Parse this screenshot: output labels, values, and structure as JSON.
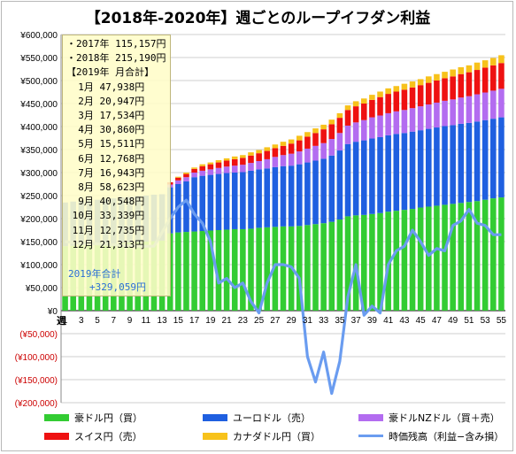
{
  "title": "【2018年-2020年】週ごとのループイフダン利益",
  "info": {
    "lines": [
      "・2017年 115,157円",
      "・2018年 215,190円",
      "【2019年 月合計】",
      "  1月 47,938円",
      "  2月 20,947円",
      "  3月 17,534円",
      "  4月 30,860円",
      "  5月 15,511円",
      "  6月 12,768円",
      "  7月 16,943円",
      "  8月 58,623円",
      "  9月 40,548円",
      " 10月 33,339円",
      " 11月 12,735円",
      " 12月 21,313円"
    ],
    "total_label": "2019年合計",
    "total_value": "+329,059円"
  },
  "legend": {
    "items": [
      {
        "label": "豪ドル円（買）",
        "color": "#33cc33",
        "kind": "bar"
      },
      {
        "label": "ユーロドル（売）",
        "color": "#1f5fe0",
        "kind": "bar"
      },
      {
        "label": "豪ドルNZドル（買＋売）",
        "color": "#b36cf0",
        "kind": "bar"
      },
      {
        "label": "スイス円（売）",
        "color": "#ee1111",
        "kind": "bar"
      },
      {
        "label": "カナダドル円（買）",
        "color": "#f7c21b",
        "kind": "bar"
      },
      {
        "label": "時価残高（利益−含み損）",
        "color": "#6a9cf0",
        "kind": "line"
      }
    ]
  },
  "chart_data": {
    "type": "bar",
    "stacked": true,
    "xlabel": "週",
    "ylim": [
      -200000,
      600000
    ],
    "yticks": [
      {
        "value": 600000,
        "label": "¥600,000"
      },
      {
        "value": 550000,
        "label": "¥550,000"
      },
      {
        "value": 500000,
        "label": "¥500,000"
      },
      {
        "value": 450000,
        "label": "¥450,000"
      },
      {
        "value": 400000,
        "label": "¥400,000"
      },
      {
        "value": 350000,
        "label": "¥350,000"
      },
      {
        "value": 300000,
        "label": "¥300,000"
      },
      {
        "value": 250000,
        "label": "¥250,000"
      },
      {
        "value": 200000,
        "label": "¥200,000"
      },
      {
        "value": 150000,
        "label": "¥150,000"
      },
      {
        "value": 100000,
        "label": "¥100,000"
      },
      {
        "value": 50000,
        "label": "¥50,000"
      },
      {
        "value": 0,
        "label": "¥0"
      },
      {
        "value": -50000,
        "label": "(¥50,000)"
      },
      {
        "value": -100000,
        "label": "(¥100,000)"
      },
      {
        "value": -150000,
        "label": "(¥150,000)"
      },
      {
        "value": -200000,
        "label": "(¥200,000)"
      }
    ],
    "x": [
      1,
      2,
      3,
      4,
      5,
      6,
      7,
      8,
      9,
      10,
      11,
      12,
      13,
      14,
      15,
      16,
      17,
      18,
      19,
      20,
      21,
      22,
      23,
      24,
      25,
      26,
      27,
      28,
      29,
      30,
      31,
      32,
      33,
      34,
      35,
      36,
      37,
      38,
      39,
      40,
      41,
      42,
      43,
      44,
      45,
      46,
      47,
      48,
      49,
      50,
      51,
      52,
      53,
      54,
      55
    ],
    "xtick_labels": [
      "1",
      "3",
      "5",
      "7",
      "9",
      "11",
      "13",
      "15",
      "17",
      "19",
      "21",
      "23",
      "25",
      "27",
      "29",
      "31",
      "33",
      "35",
      "37",
      "39",
      "41",
      "43",
      "45",
      "47",
      "49",
      "51",
      "53",
      "55"
    ],
    "series": [
      {
        "name": "豪ドル円（買）",
        "color": "#33cc33",
        "values": [
          140000,
          141000,
          142000,
          143000,
          144000,
          145000,
          146000,
          147000,
          148000,
          149000,
          150000,
          151000,
          152000,
          168000,
          170000,
          171000,
          172000,
          173000,
          174000,
          175000,
          176000,
          177000,
          177000,
          178000,
          180000,
          181000,
          182000,
          183000,
          183000,
          184000,
          186000,
          188000,
          190000,
          193000,
          198000,
          205000,
          207000,
          208000,
          210000,
          212000,
          215000,
          217000,
          219000,
          221000,
          224000,
          226000,
          228000,
          230000,
          232000,
          234000,
          236000,
          238000,
          241000,
          244000,
          246000
        ]
      },
      {
        "name": "ユーロドル（売）",
        "color": "#1f5fe0",
        "values": [
          95000,
          96000,
          96000,
          97000,
          97000,
          98000,
          98000,
          99000,
          99000,
          100000,
          100000,
          101000,
          101000,
          100000,
          105000,
          110000,
          118000,
          120000,
          121000,
          122000,
          123000,
          123000,
          124000,
          126000,
          127000,
          128000,
          130000,
          131000,
          132000,
          134000,
          136000,
          138000,
          140000,
          144000,
          150000,
          157000,
          160000,
          162000,
          164000,
          165000,
          166000,
          167000,
          167000,
          168000,
          168000,
          169000,
          170000,
          171000,
          171000,
          172000,
          172000,
          173000,
          173000,
          173000,
          174000
        ]
      },
      {
        "name": "豪ドルNZドル（買＋売）",
        "color": "#b36cf0",
        "values": [
          0,
          0,
          0,
          0,
          0,
          0,
          0,
          0,
          0,
          0,
          0,
          0,
          0,
          6000,
          8000,
          9000,
          10000,
          11000,
          12000,
          13000,
          14000,
          15000,
          16000,
          17000,
          18000,
          20000,
          22000,
          24000,
          26000,
          28000,
          30000,
          32000,
          34000,
          36000,
          38000,
          40000,
          42000,
          44000,
          46000,
          47000,
          48000,
          49000,
          50000,
          51000,
          52000,
          53000,
          54000,
          55000,
          56000,
          57000,
          58000,
          59000,
          60000,
          61000,
          62000
        ]
      },
      {
        "name": "スイス円（売）",
        "color": "#ee1111",
        "values": [
          0,
          0,
          0,
          0,
          0,
          0,
          0,
          0,
          0,
          0,
          0,
          0,
          0,
          5000,
          6000,
          7000,
          8000,
          10000,
          11000,
          12000,
          13000,
          14000,
          15000,
          16000,
          17000,
          18000,
          19000,
          20000,
          22000,
          24000,
          26000,
          28000,
          30000,
          32000,
          33000,
          34000,
          35000,
          36000,
          38000,
          40000,
          42000,
          43000,
          44000,
          45000,
          46000,
          47000,
          48000,
          49000,
          50000,
          51000,
          52000,
          53000,
          54000,
          55000,
          56000
        ]
      },
      {
        "name": "カナダドル円（買）",
        "color": "#f7c21b",
        "values": [
          0,
          0,
          0,
          0,
          0,
          0,
          0,
          0,
          0,
          0,
          0,
          0,
          0,
          0,
          2000,
          3000,
          3000,
          4000,
          4000,
          5000,
          5000,
          6000,
          6000,
          7000,
          7000,
          8000,
          8000,
          9000,
          9000,
          10000,
          10000,
          10000,
          10000,
          10000,
          10000,
          10000,
          11000,
          11000,
          11000,
          12000,
          12000,
          12000,
          13000,
          13000,
          13000,
          14000,
          14000,
          14000,
          15000,
          15000,
          15000,
          16000,
          16000,
          16000,
          17000
        ]
      },
      {
        "name": "時価残高（利益−含み損）",
        "color": "#6a9cf0",
        "type": "line",
        "values": [
          150000,
          148000,
          147000,
          146000,
          145000,
          144000,
          143000,
          142000,
          141000,
          140000,
          140000,
          140000,
          170000,
          200000,
          225000,
          240000,
          210000,
          190000,
          150000,
          60000,
          70000,
          50000,
          60000,
          20000,
          -5000,
          60000,
          100000,
          100000,
          95000,
          70000,
          -100000,
          -155000,
          -90000,
          -180000,
          -110000,
          30000,
          100000,
          -10000,
          10000,
          -5000,
          100000,
          130000,
          140000,
          175000,
          150000,
          120000,
          135000,
          130000,
          185000,
          195000,
          220000,
          190000,
          185000,
          165000,
          165000
        ]
      }
    ]
  }
}
